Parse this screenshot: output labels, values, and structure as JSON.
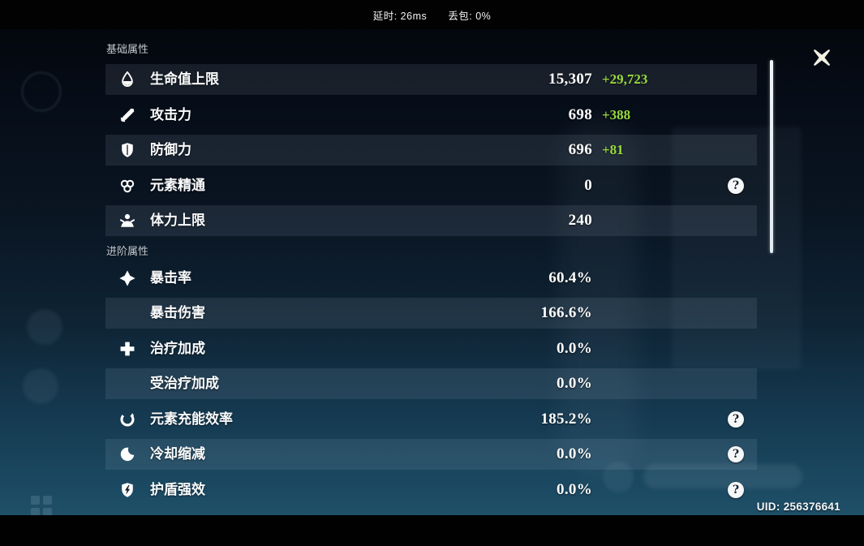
{
  "system_bar": {
    "latency_label": "延时:",
    "latency_value": "26ms",
    "packet_loss_label": "丢包:",
    "packet_loss_value": "0%"
  },
  "panel": {
    "sections": [
      {
        "title": "基础属性",
        "rows": [
          {
            "icon": "hp-droplet-icon",
            "label": "生命值上限",
            "value": "15,307",
            "bonus": "+29,723",
            "help": false
          },
          {
            "icon": "attack-sword-icon",
            "label": "攻击力",
            "value": "698",
            "bonus": "+388",
            "help": false
          },
          {
            "icon": "defense-shield-icon",
            "label": "防御力",
            "value": "696",
            "bonus": "+81",
            "help": false
          },
          {
            "icon": "elemental-mastery-icon",
            "label": "元素精通",
            "value": "0",
            "bonus": "",
            "help": true
          },
          {
            "icon": "stamina-person-icon",
            "label": "体力上限",
            "value": "240",
            "bonus": "",
            "help": false
          }
        ]
      },
      {
        "title": "进阶属性",
        "rows": [
          {
            "icon": "crit-rate-star-icon",
            "label": "暴击率",
            "value": "60.4%",
            "bonus": "",
            "help": false
          },
          {
            "icon": "",
            "label": "暴击伤害",
            "value": "166.6%",
            "bonus": "",
            "help": false
          },
          {
            "icon": "healing-cross-icon",
            "label": "治疗加成",
            "value": "0.0%",
            "bonus": "",
            "help": false
          },
          {
            "icon": "",
            "label": "受治疗加成",
            "value": "0.0%",
            "bonus": "",
            "help": false
          },
          {
            "icon": "energy-recharge-icon",
            "label": "元素充能效率",
            "value": "185.2%",
            "bonus": "",
            "help": true
          },
          {
            "icon": "cooldown-crescent-icon",
            "label": "冷却缩减",
            "value": "0.0%",
            "bonus": "",
            "help": true
          },
          {
            "icon": "shield-strength-icon",
            "label": "护盾强效",
            "value": "0.0%",
            "bonus": "",
            "help": true
          }
        ]
      }
    ],
    "help_glyph": "?"
  },
  "uid": {
    "label": "UID:",
    "value": "256376641"
  },
  "colors": {
    "bonus_green": "#98d93c",
    "value_white": "#ffffff",
    "band_overlay": "rgba(198,219,235,0.10)",
    "section_title_gray": "#c3cad1"
  }
}
